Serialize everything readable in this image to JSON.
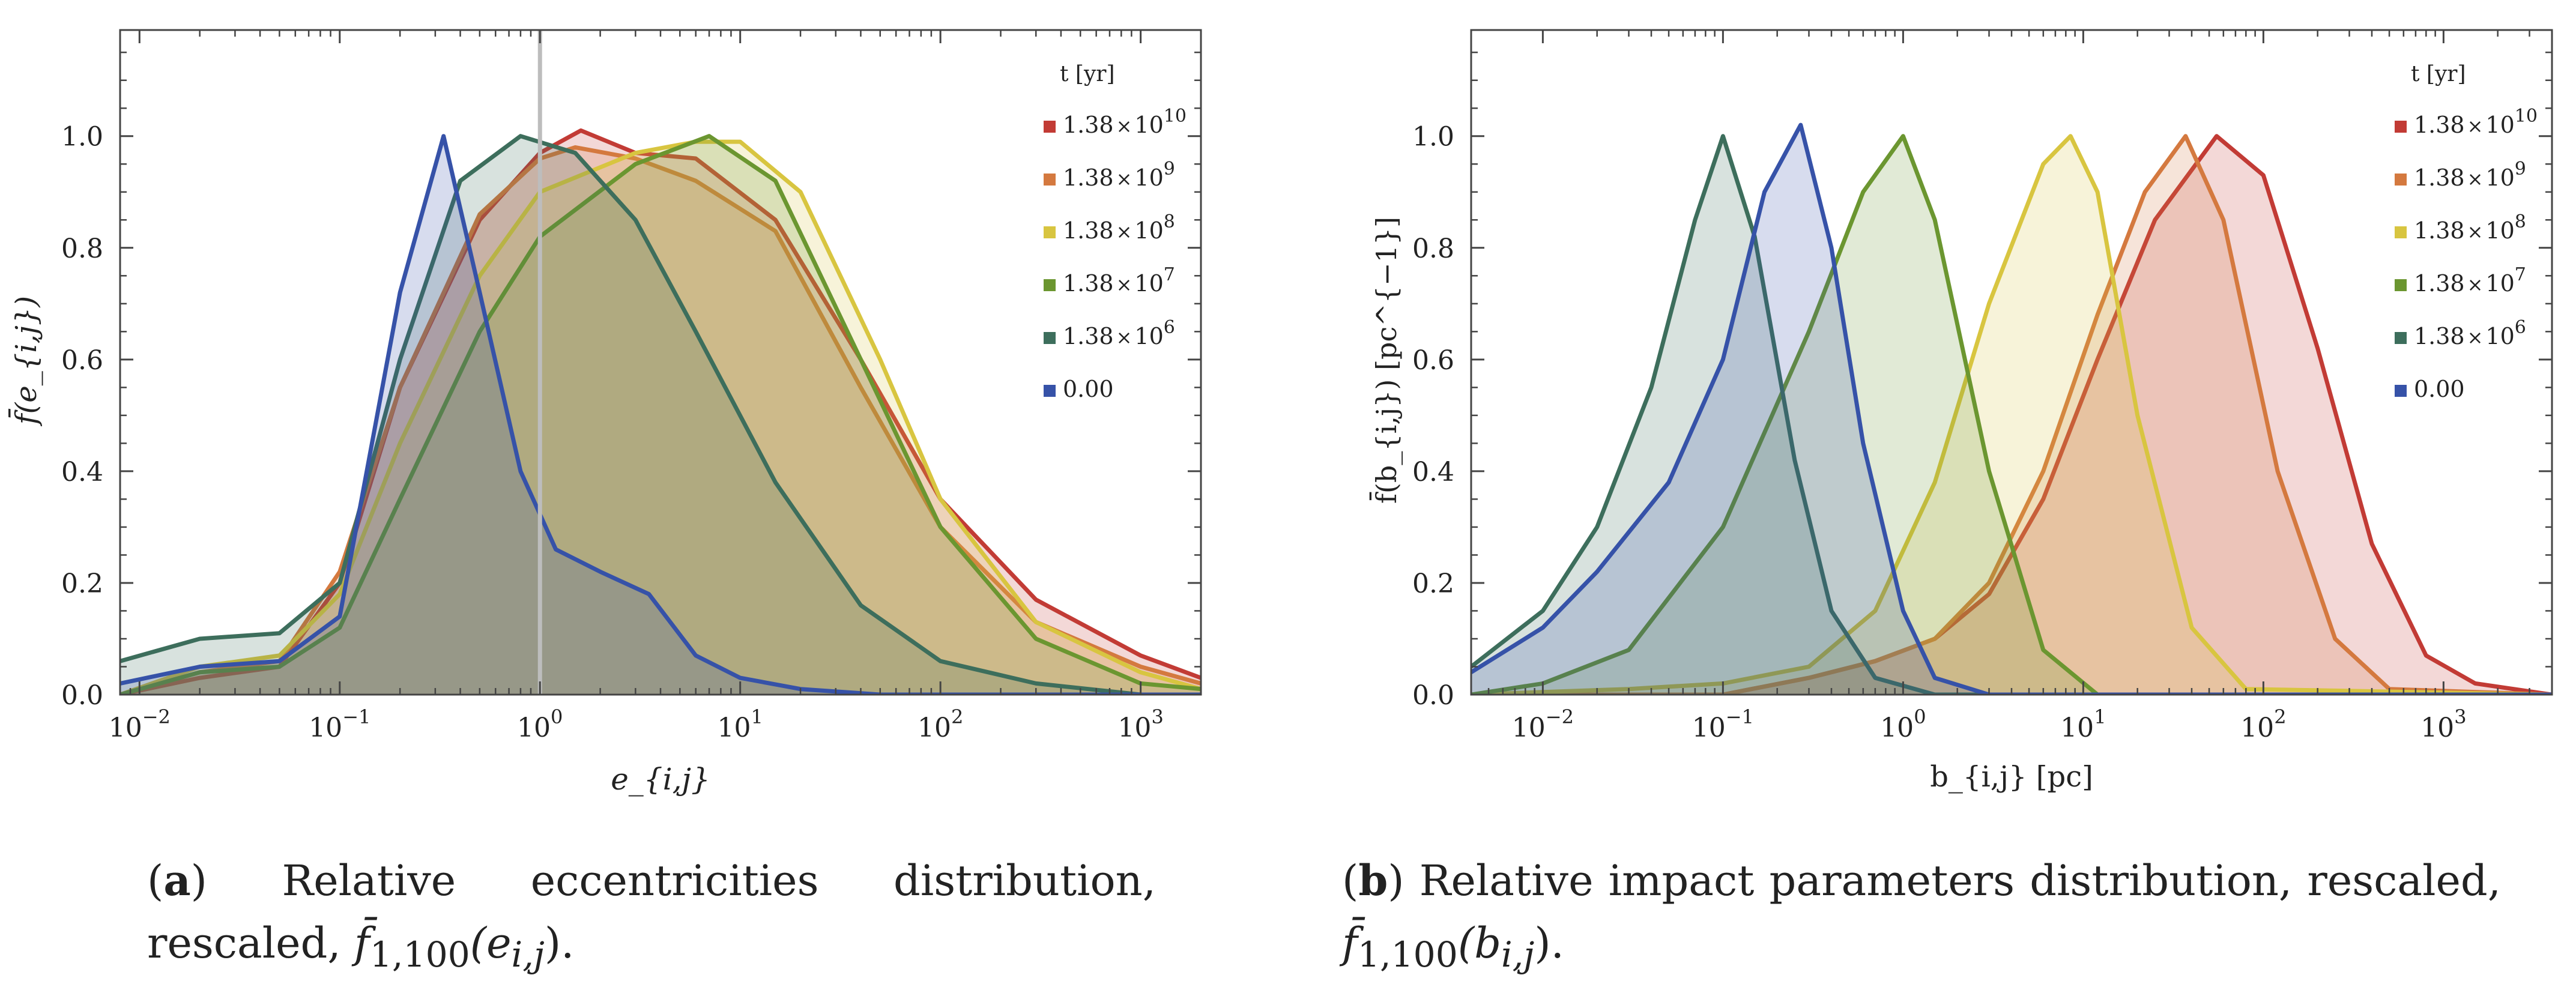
{
  "legend_title": "t [yr]",
  "series_colors": {
    "1.38e10": "#c23b35",
    "1.38e9": "#d4793f",
    "1.38e8": "#d8c540",
    "1.38e7": "#6b9630",
    "1.38e6": "#3d6e5c",
    "0": "#3652a8"
  },
  "legend_labels": [
    {
      "key": "1.38e10",
      "mantissa": "1.38",
      "times": "×",
      "base": "10",
      "exp": "10"
    },
    {
      "key": "1.38e9",
      "mantissa": "1.38",
      "times": "×",
      "base": "10",
      "exp": "9"
    },
    {
      "key": "1.38e8",
      "mantissa": "1.38",
      "times": "×",
      "base": "10",
      "exp": "8"
    },
    {
      "key": "1.38e7",
      "mantissa": "1.38",
      "times": "×",
      "base": "10",
      "exp": "7"
    },
    {
      "key": "1.38e6",
      "mantissa": "1.38",
      "times": "×",
      "base": "10",
      "exp": "6"
    },
    {
      "key": "0",
      "plain": "0.00"
    }
  ],
  "chart_data": [
    {
      "type": "area",
      "id": "a",
      "title": "",
      "xlabel": "e_{i,j}",
      "ylabel": "f̄(e_{i,j})",
      "xscale": "log",
      "xlim": [
        0.008,
        2000
      ],
      "ylim": [
        0,
        1.19
      ],
      "x_ticks": [
        {
          "base": "10",
          "exp": "−2"
        },
        {
          "base": "10",
          "exp": "−1"
        },
        {
          "base": "10",
          "exp": "0"
        },
        {
          "base": "10",
          "exp": "1"
        },
        {
          "base": "10",
          "exp": "2"
        },
        {
          "base": "10",
          "exp": "3"
        }
      ],
      "y_ticks": [
        "0.0",
        "0.2",
        "0.4",
        "0.6",
        "0.8",
        "1.0"
      ],
      "vertical_line_x": 1,
      "legend_placement": "top-right",
      "series": [
        {
          "key": "1.38e10",
          "points": [
            [
              0.008,
              0.0
            ],
            [
              0.02,
              0.03
            ],
            [
              0.05,
              0.05
            ],
            [
              0.1,
              0.2
            ],
            [
              0.2,
              0.55
            ],
            [
              0.5,
              0.85
            ],
            [
              1,
              0.97
            ],
            [
              1.6,
              1.01
            ],
            [
              3,
              0.97
            ],
            [
              6,
              0.96
            ],
            [
              15,
              0.85
            ],
            [
              40,
              0.6
            ],
            [
              100,
              0.35
            ],
            [
              300,
              0.17
            ],
            [
              1000,
              0.07
            ],
            [
              2000,
              0.03
            ]
          ]
        },
        {
          "key": "1.38e9",
          "points": [
            [
              0.008,
              0.0
            ],
            [
              0.02,
              0.04
            ],
            [
              0.05,
              0.06
            ],
            [
              0.1,
              0.22
            ],
            [
              0.2,
              0.55
            ],
            [
              0.5,
              0.86
            ],
            [
              1,
              0.96
            ],
            [
              1.5,
              0.98
            ],
            [
              3,
              0.96
            ],
            [
              6,
              0.92
            ],
            [
              15,
              0.83
            ],
            [
              40,
              0.55
            ],
            [
              100,
              0.3
            ],
            [
              300,
              0.13
            ],
            [
              1000,
              0.05
            ],
            [
              2000,
              0.02
            ]
          ]
        },
        {
          "key": "1.38e8",
          "points": [
            [
              0.008,
              0.0
            ],
            [
              0.02,
              0.05
            ],
            [
              0.05,
              0.07
            ],
            [
              0.1,
              0.18
            ],
            [
              0.2,
              0.45
            ],
            [
              0.5,
              0.75
            ],
            [
              1,
              0.9
            ],
            [
              3,
              0.97
            ],
            [
              6,
              0.99
            ],
            [
              10,
              0.99
            ],
            [
              20,
              0.9
            ],
            [
              50,
              0.6
            ],
            [
              100,
              0.35
            ],
            [
              300,
              0.13
            ],
            [
              1000,
              0.04
            ],
            [
              2000,
              0.01
            ]
          ]
        },
        {
          "key": "1.38e7",
          "points": [
            [
              0.008,
              0.0
            ],
            [
              0.02,
              0.04
            ],
            [
              0.05,
              0.05
            ],
            [
              0.1,
              0.12
            ],
            [
              0.2,
              0.35
            ],
            [
              0.5,
              0.65
            ],
            [
              1,
              0.82
            ],
            [
              3,
              0.95
            ],
            [
              7,
              1.0
            ],
            [
              15,
              0.92
            ],
            [
              40,
              0.6
            ],
            [
              100,
              0.3
            ],
            [
              300,
              0.1
            ],
            [
              1000,
              0.02
            ],
            [
              2000,
              0.01
            ]
          ]
        },
        {
          "key": "1.38e6",
          "points": [
            [
              0.008,
              0.06
            ],
            [
              0.02,
              0.1
            ],
            [
              0.05,
              0.11
            ],
            [
              0.1,
              0.2
            ],
            [
              0.2,
              0.6
            ],
            [
              0.4,
              0.92
            ],
            [
              0.8,
              1.0
            ],
            [
              1.5,
              0.97
            ],
            [
              3,
              0.85
            ],
            [
              6,
              0.65
            ],
            [
              15,
              0.38
            ],
            [
              40,
              0.16
            ],
            [
              100,
              0.06
            ],
            [
              300,
              0.02
            ],
            [
              1000,
              0.0
            ],
            [
              2000,
              0.0
            ]
          ]
        },
        {
          "key": "0",
          "points": [
            [
              0.008,
              0.02
            ],
            [
              0.02,
              0.05
            ],
            [
              0.05,
              0.06
            ],
            [
              0.1,
              0.14
            ],
            [
              0.2,
              0.72
            ],
            [
              0.33,
              1.0
            ],
            [
              0.5,
              0.72
            ],
            [
              0.8,
              0.4
            ],
            [
              1.2,
              0.26
            ],
            [
              2,
              0.22
            ],
            [
              3.5,
              0.18
            ],
            [
              6,
              0.07
            ],
            [
              10,
              0.03
            ],
            [
              20,
              0.01
            ],
            [
              50,
              0.0
            ],
            [
              2000,
              0.0
            ]
          ]
        }
      ]
    },
    {
      "type": "area",
      "id": "b",
      "title": "",
      "xlabel": "b_{i,j} [pc]",
      "ylabel": "f̄(b_{i,j}) [pc^{−1}]",
      "xscale": "log",
      "xlim": [
        0.004,
        4000
      ],
      "ylim": [
        0,
        1.19
      ],
      "x_ticks": [
        {
          "base": "10",
          "exp": "−2"
        },
        {
          "base": "10",
          "exp": "−1"
        },
        {
          "base": "10",
          "exp": "0"
        },
        {
          "base": "10",
          "exp": "1"
        },
        {
          "base": "10",
          "exp": "2"
        },
        {
          "base": "10",
          "exp": "3"
        }
      ],
      "y_ticks": [
        "0.0",
        "0.2",
        "0.4",
        "0.6",
        "0.8",
        "1.0"
      ],
      "legend_placement": "top-right",
      "series": [
        {
          "key": "1.38e10",
          "points": [
            [
              0.004,
              0.0
            ],
            [
              0.1,
              0.0
            ],
            [
              0.3,
              0.03
            ],
            [
              0.7,
              0.06
            ],
            [
              1.5,
              0.1
            ],
            [
              3,
              0.18
            ],
            [
              6,
              0.35
            ],
            [
              12,
              0.6
            ],
            [
              25,
              0.85
            ],
            [
              55,
              1.0
            ],
            [
              100,
              0.93
            ],
            [
              200,
              0.62
            ],
            [
              400,
              0.27
            ],
            [
              800,
              0.07
            ],
            [
              1500,
              0.02
            ],
            [
              4000,
              0.0
            ]
          ]
        },
        {
          "key": "1.38e9",
          "points": [
            [
              0.004,
              0.0
            ],
            [
              0.1,
              0.0
            ],
            [
              0.3,
              0.03
            ],
            [
              0.7,
              0.06
            ],
            [
              1.5,
              0.1
            ],
            [
              3,
              0.2
            ],
            [
              6,
              0.4
            ],
            [
              12,
              0.68
            ],
            [
              22,
              0.9
            ],
            [
              37,
              1.0
            ],
            [
              60,
              0.85
            ],
            [
              120,
              0.4
            ],
            [
              250,
              0.1
            ],
            [
              500,
              0.01
            ],
            [
              4000,
              0.0
            ]
          ]
        },
        {
          "key": "1.38e8",
          "points": [
            [
              0.004,
              0.0
            ],
            [
              0.03,
              0.01
            ],
            [
              0.1,
              0.02
            ],
            [
              0.3,
              0.05
            ],
            [
              0.7,
              0.15
            ],
            [
              1.5,
              0.38
            ],
            [
              3,
              0.7
            ],
            [
              6,
              0.95
            ],
            [
              8.5,
              1.0
            ],
            [
              12,
              0.9
            ],
            [
              20,
              0.5
            ],
            [
              40,
              0.12
            ],
            [
              80,
              0.01
            ],
            [
              4000,
              0.0
            ]
          ]
        },
        {
          "key": "1.38e7",
          "points": [
            [
              0.004,
              0.0
            ],
            [
              0.01,
              0.02
            ],
            [
              0.03,
              0.08
            ],
            [
              0.1,
              0.3
            ],
            [
              0.3,
              0.65
            ],
            [
              0.6,
              0.9
            ],
            [
              1,
              1.0
            ],
            [
              1.5,
              0.85
            ],
            [
              3,
              0.4
            ],
            [
              6,
              0.08
            ],
            [
              12,
              0.0
            ],
            [
              4000,
              0.0
            ]
          ]
        },
        {
          "key": "1.38e6",
          "points": [
            [
              0.004,
              0.05
            ],
            [
              0.01,
              0.15
            ],
            [
              0.02,
              0.3
            ],
            [
              0.04,
              0.55
            ],
            [
              0.07,
              0.85
            ],
            [
              0.1,
              1.0
            ],
            [
              0.15,
              0.82
            ],
            [
              0.25,
              0.42
            ],
            [
              0.4,
              0.15
            ],
            [
              0.7,
              0.03
            ],
            [
              1.5,
              0.0
            ],
            [
              4000,
              0.0
            ]
          ]
        },
        {
          "key": "0",
          "points": [
            [
              0.004,
              0.04
            ],
            [
              0.01,
              0.12
            ],
            [
              0.02,
              0.22
            ],
            [
              0.05,
              0.38
            ],
            [
              0.1,
              0.6
            ],
            [
              0.17,
              0.9
            ],
            [
              0.27,
              1.02
            ],
            [
              0.4,
              0.8
            ],
            [
              0.6,
              0.45
            ],
            [
              1,
              0.15
            ],
            [
              1.5,
              0.03
            ],
            [
              3,
              0.0
            ],
            [
              4000,
              0.0
            ]
          ]
        }
      ]
    }
  ],
  "captions": {
    "a": {
      "letter": "a",
      "text": " Relative eccentricities distribution, rescaled,",
      "math": "f̄",
      "sub": "1,100",
      "arg": "(e",
      "argsub": "i,j",
      "tail": ")."
    },
    "b": {
      "letter": "b",
      "text": " Relative impact parameters distribution, rescaled,",
      "math": "f̄",
      "sub": "1,100",
      "arg": "(b",
      "argsub": "i,j",
      "tail": ")."
    }
  }
}
